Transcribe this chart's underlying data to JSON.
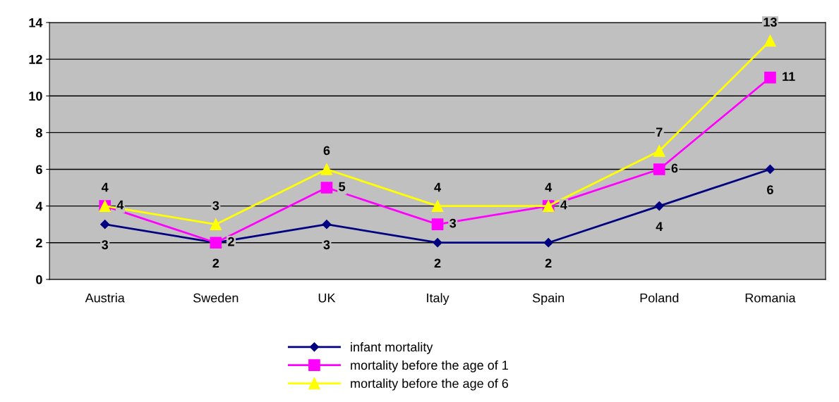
{
  "chart_data": {
    "type": "line",
    "categories": [
      "Austria",
      "Sweden",
      "UK",
      "Italy",
      "Spain",
      "Poland",
      "Romania"
    ],
    "series": [
      {
        "name": "infant mortality",
        "color": "#000080",
        "marker": "diamond",
        "values": [
          3,
          2,
          3,
          2,
          2,
          4,
          6
        ]
      },
      {
        "name": "mortality before the age of 1",
        "color": "#ff00ff",
        "marker": "square",
        "values": [
          4,
          2,
          5,
          3,
          4,
          6,
          11
        ]
      },
      {
        "name": "mortality before the age of 6",
        "color": "#ffff00",
        "marker": "triangle",
        "values": [
          4,
          3,
          6,
          4,
          4,
          7,
          13
        ]
      }
    ],
    "ylim": [
      0,
      14
    ],
    "yticks": [
      0,
      2,
      4,
      6,
      8,
      10,
      12,
      14
    ],
    "grid": "y",
    "legend": "bottom",
    "data_labels": true,
    "line_style": "solid"
  }
}
